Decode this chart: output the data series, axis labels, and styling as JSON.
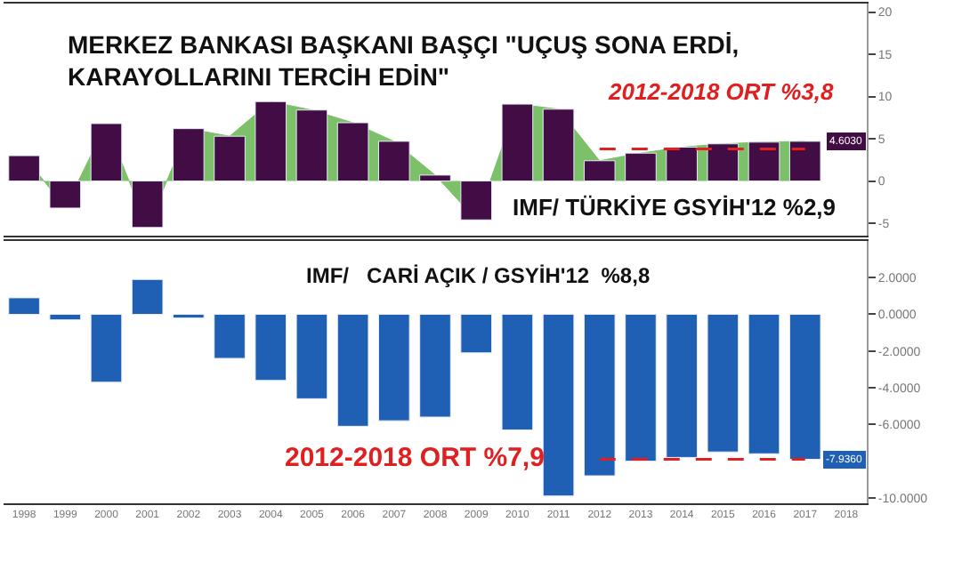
{
  "chart_data": [
    {
      "type": "bar",
      "title": "MERKEZ BANKASI BAŞKANI BAŞÇI \"UÇUŞ SONA ERDİ,\nKARAYOLLARINI TERCİH EDİN\"",
      "categories": [
        "1998",
        "1999",
        "2000",
        "2001",
        "2002",
        "2003",
        "2004",
        "2005",
        "2006",
        "2007",
        "2008",
        "2009",
        "2010",
        "2011",
        "2012",
        "2013",
        "2014",
        "2015",
        "2016",
        "2017",
        "2018"
      ],
      "series": [
        {
          "type": "area",
          "color": "#7cc06a",
          "values": [
            3.0,
            -3.2,
            6.8,
            -5.5,
            6.2,
            5.3,
            9.4,
            8.4,
            6.9,
            4.7,
            0.7,
            -4.6,
            9.1,
            8.5,
            2.4,
            3.3,
            4.0,
            4.4,
            4.6,
            4.7,
            null
          ]
        },
        {
          "color": "#420d45",
          "values": [
            3.0,
            -3.2,
            6.8,
            -5.5,
            6.2,
            5.3,
            9.4,
            8.4,
            6.9,
            4.7,
            0.7,
            -4.6,
            9.1,
            8.5,
            2.4,
            3.3,
            4.0,
            4.4,
            4.6,
            4.7,
            null
          ]
        },
        {
          "type": "line",
          "color": "#e02020",
          "line_style": "dashed",
          "values": [
            null,
            null,
            null,
            null,
            null,
            null,
            null,
            null,
            null,
            null,
            null,
            null,
            null,
            null,
            3.8,
            3.8,
            3.8,
            3.8,
            3.8,
            3.8,
            null
          ]
        }
      ],
      "ylim": [
        -6.5,
        21
      ],
      "yticks": [
        -5,
        0,
        5,
        10,
        15,
        20
      ],
      "tick_labels": "y",
      "annotations": [
        "2012-2018 ORT %3,8",
        "IMF/ TÜRKİYE GSYİH'12 %2,9",
        {
          "text": "4.6030",
          "y": 4.603
        }
      ]
    },
    {
      "type": "bar",
      "title": "IMF/   CARİ AÇIK / GSYİH'12  %8,8",
      "categories": [
        "1998",
        "1999",
        "2000",
        "2001",
        "2002",
        "2003",
        "2004",
        "2005",
        "2006",
        "2007",
        "2008",
        "2009",
        "2010",
        "2011",
        "2012",
        "2013",
        "2014",
        "2015",
        "2016",
        "2017",
        "2018"
      ],
      "series": [
        {
          "color": "#1f5fb4",
          "values": [
            0.9,
            -0.3,
            -3.7,
            1.9,
            -0.2,
            -2.4,
            -3.6,
            -4.6,
            -6.1,
            -5.8,
            -5.6,
            -2.1,
            -6.3,
            -9.9,
            -8.8,
            -8.0,
            -7.8,
            -7.5,
            -7.6,
            -7.9,
            null
          ]
        },
        {
          "type": "line",
          "color": "#e02020",
          "line_style": "dashed",
          "values": [
            null,
            null,
            null,
            null,
            null,
            null,
            null,
            null,
            null,
            null,
            null,
            null,
            null,
            null,
            -7.9,
            -7.9,
            -7.9,
            -7.9,
            -7.9,
            -7.9,
            null
          ]
        }
      ],
      "ylim": [
        -10.3,
        4
      ],
      "yticks": [
        {
          "value": 2,
          "label": "2.0000"
        },
        {
          "value": 0,
          "label": "0.0000"
        },
        {
          "value": -2,
          "label": "-2.0000"
        },
        {
          "value": -4,
          "label": "-4.0000"
        },
        {
          "value": -6,
          "label": "-6.0000"
        },
        {
          "value": -10,
          "label": "-10.0000"
        }
      ],
      "annotations": [
        "2012-2018 ORT %7,9",
        {
          "text": "-7.9360",
          "y": -7.936
        }
      ]
    }
  ]
}
